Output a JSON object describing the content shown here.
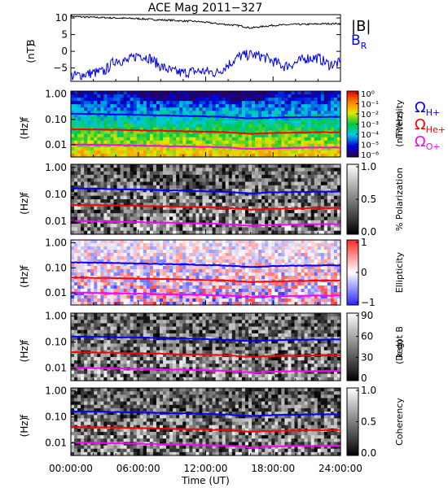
{
  "title": "ACE Mag 2011−327",
  "chart_data": [
    {
      "type": "line",
      "ylabel": "B\n(nT)",
      "ylim": [
        -9,
        11
      ],
      "yticks": [
        "10",
        "5",
        "0",
        "−5"
      ],
      "ytick_values": [
        10,
        5,
        0,
        -5
      ],
      "series": [
        {
          "name": "|B|",
          "color": "#000000",
          "x": [
            0,
            1,
            2,
            3,
            4,
            5,
            6,
            7,
            8,
            9,
            10,
            11,
            12,
            13,
            14,
            15,
            16,
            17,
            18,
            19,
            20,
            21,
            22,
            23,
            24
          ],
          "values": [
            10.5,
            10.3,
            10.2,
            10.1,
            10.0,
            9.9,
            9.8,
            9.6,
            9.4,
            9.3,
            9.1,
            9.0,
            8.7,
            8.3,
            8.0,
            7.7,
            7.0,
            7.4,
            7.8,
            7.9,
            8.1,
            8.1,
            8.2,
            8.3,
            8.3
          ]
        },
        {
          "name": "B_R",
          "label_main": "B",
          "label_sub": "R",
          "color": "#0000ee",
          "x": [
            0,
            1,
            2,
            3,
            4,
            5,
            6,
            7,
            8,
            9,
            10,
            11,
            12,
            13,
            14,
            15,
            16,
            17,
            18,
            19,
            20,
            21,
            22,
            23,
            24
          ],
          "values": [
            -7.5,
            -7.0,
            -6.5,
            -6.0,
            -2.5,
            -3.0,
            -1.0,
            -2.0,
            -4.5,
            -6.0,
            -6.5,
            -6.0,
            -6.0,
            -6.5,
            -4.0,
            -1.5,
            -1.0,
            -1.5,
            -3.0,
            -4.5,
            -3.5,
            -2.0,
            -2.0,
            -4.0,
            -3.5
          ]
        }
      ]
    },
    {
      "type": "heatmap",
      "name": "power-spectrum",
      "ylabel": "f\n(Hz)",
      "colorbar_label": "Intensity\n(nT²/Hz)",
      "colorbar_ticks": [
        "10⁰",
        "10⁻¹",
        "10⁻²",
        "10⁻³",
        "10⁻⁴",
        "10⁻⁵",
        "10⁻⁶"
      ],
      "palette": "rainbow"
    },
    {
      "type": "heatmap",
      "name": "polarization",
      "ylabel": "f\n(Hz)",
      "colorbar_label": "% Polarization",
      "colorbar_ticks": [
        "1.0",
        "0.5",
        "0.0"
      ],
      "palette": "gray"
    },
    {
      "type": "heatmap",
      "name": "ellipticity",
      "ylabel": "f\n(Hz)",
      "colorbar_label": "Ellipticity",
      "colorbar_ticks": [
        "1",
        "0",
        "−1"
      ],
      "palette": "redblue"
    },
    {
      "type": "heatmap",
      "name": "k-dot-b",
      "ylabel": "f\n(Hz)",
      "colorbar_label": "k dot B\n(Deg)",
      "colorbar_ticks": [
        "90",
        "60",
        "30",
        "0"
      ],
      "palette": "gray"
    },
    {
      "type": "heatmap",
      "name": "coherency",
      "ylabel": "f\n(Hz)",
      "colorbar_label": "Coherency",
      "colorbar_ticks": [
        "1.0",
        "0.5",
        "0.0"
      ],
      "palette": "gray"
    }
  ],
  "freq_axis": {
    "ticks": [
      "1.00",
      "0.10",
      "0.01"
    ],
    "tick_values": [
      1.0,
      0.1,
      0.01
    ],
    "ylim": [
      0.0033,
      1.3
    ],
    "scale": "log"
  },
  "gyro_lines": [
    {
      "label_main": "Ω",
      "label_sub": "H+",
      "color": "#0000ff",
      "x": [
        0,
        2,
        4,
        6,
        8,
        10,
        12,
        14,
        15,
        16,
        17,
        18,
        20,
        22,
        24
      ],
      "values": [
        0.165,
        0.162,
        0.155,
        0.15,
        0.143,
        0.138,
        0.13,
        0.123,
        0.115,
        0.108,
        0.112,
        0.118,
        0.122,
        0.126,
        0.126
      ]
    },
    {
      "label_main": "Ω",
      "label_sub": "He+",
      "color": "#ff0000",
      "x": [
        0,
        2,
        4,
        6,
        8,
        10,
        12,
        14,
        15,
        16,
        17,
        18,
        20,
        22,
        24
      ],
      "values": [
        0.041,
        0.04,
        0.039,
        0.037,
        0.036,
        0.034,
        0.033,
        0.031,
        0.029,
        0.027,
        0.028,
        0.029,
        0.03,
        0.031,
        0.031
      ]
    },
    {
      "label_main": "Ω",
      "label_sub": "O+",
      "color": "#ff00ff",
      "x": [
        0,
        2,
        4,
        6,
        8,
        10,
        12,
        14,
        15,
        16,
        17,
        18,
        20,
        22,
        24
      ],
      "values": [
        0.0103,
        0.01,
        0.0097,
        0.0093,
        0.009,
        0.0086,
        0.0082,
        0.0078,
        0.0073,
        0.0068,
        0.007,
        0.0073,
        0.0076,
        0.0078,
        0.0078
      ]
    }
  ],
  "time_axis": {
    "xlabel": "Time (UT)",
    "ticks": [
      "00:00:00",
      "06:00:00",
      "12:00:00",
      "18:00:00",
      "24:00:00"
    ],
    "tick_values": [
      0,
      6,
      12,
      18,
      24
    ]
  }
}
